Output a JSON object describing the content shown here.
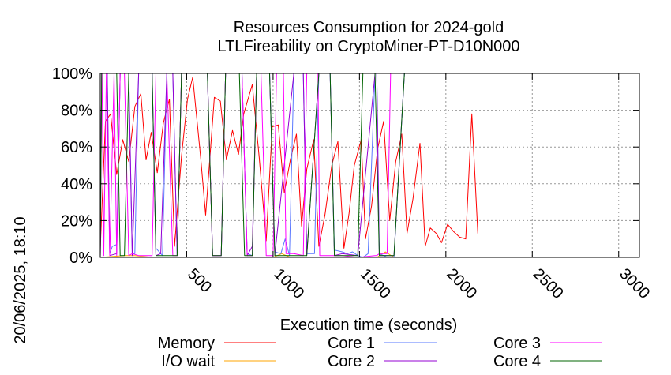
{
  "chart_data": {
    "type": "line",
    "title": "Resources Consumption for 2024-gold",
    "subtitle": "LTLFireability on CryptoMiner-PT-D10N000",
    "xlabel": "Execution time (seconds)",
    "ylabel": "",
    "side_label": "20/06/2025, 18:10",
    "xlim": [
      0,
      3120
    ],
    "ylim": [
      0,
      100
    ],
    "x_ticks": [
      500,
      1000,
      1500,
      2000,
      2500,
      3000
    ],
    "y_ticks": [
      0,
      20,
      40,
      60,
      80,
      100
    ],
    "y_tick_labels": [
      "0%",
      "20%",
      "40%",
      "60%",
      "80%",
      "100%"
    ],
    "grid": true,
    "legend_position": "bottom",
    "series": [
      {
        "name": "Memory",
        "color": "#ff0000",
        "points": [
          [
            0,
            5
          ],
          [
            30,
            74
          ],
          [
            60,
            78
          ],
          [
            95,
            45
          ],
          [
            130,
            64
          ],
          [
            165,
            52
          ],
          [
            200,
            82
          ],
          [
            235,
            89
          ],
          [
            265,
            53
          ],
          [
            295,
            68
          ],
          [
            330,
            46
          ],
          [
            365,
            73
          ],
          [
            400,
            86
          ],
          [
            430,
            6
          ],
          [
            470,
            55
          ],
          [
            505,
            86
          ],
          [
            535,
            98
          ],
          [
            580,
            55
          ],
          [
            610,
            23
          ],
          [
            660,
            87
          ],
          [
            695,
            85
          ],
          [
            730,
            53
          ],
          [
            765,
            69
          ],
          [
            800,
            56
          ],
          [
            830,
            78
          ],
          [
            880,
            94
          ],
          [
            920,
            54
          ],
          [
            960,
            9
          ],
          [
            995,
            71
          ],
          [
            1030,
            72
          ],
          [
            1065,
            35
          ],
          [
            1100,
            53
          ],
          [
            1135,
            67
          ],
          [
            1165,
            17
          ],
          [
            1195,
            48
          ],
          [
            1235,
            64
          ],
          [
            1265,
            6
          ],
          [
            1300,
            23
          ],
          [
            1340,
            50
          ],
          [
            1375,
            63
          ],
          [
            1410,
            5
          ],
          [
            1440,
            24
          ],
          [
            1470,
            50
          ],
          [
            1510,
            64
          ],
          [
            1535,
            10
          ],
          [
            1570,
            28
          ],
          [
            1605,
            59
          ],
          [
            1640,
            74
          ],
          [
            1675,
            20
          ],
          [
            1710,
            52
          ],
          [
            1745,
            67
          ],
          [
            1775,
            13
          ],
          [
            1810,
            32
          ],
          [
            1850,
            62
          ],
          [
            1880,
            6
          ],
          [
            1910,
            16
          ],
          [
            1945,
            13
          ],
          [
            1975,
            8
          ],
          [
            2010,
            18
          ],
          [
            2045,
            14
          ],
          [
            2080,
            11
          ],
          [
            2115,
            10
          ],
          [
            2150,
            78
          ],
          [
            2185,
            13
          ]
        ]
      },
      {
        "name": "I/O wait",
        "color": "#ffa500",
        "points": [
          [
            0,
            0
          ],
          [
            140,
            1
          ],
          [
            200,
            1
          ],
          [
            300,
            0
          ],
          [
            700,
            0
          ],
          [
            1000,
            0
          ],
          [
            1050,
            2
          ],
          [
            1100,
            0
          ],
          [
            1200,
            0
          ],
          [
            1500,
            0
          ],
          [
            1600,
            0
          ],
          [
            1650,
            3
          ],
          [
            1700,
            0
          ],
          [
            2185,
            0
          ]
        ]
      },
      {
        "name": "Core 1",
        "color": "#5a78ff",
        "points": [
          [
            0,
            0
          ],
          [
            8,
            100
          ],
          [
            40,
            100
          ],
          [
            55,
            2
          ],
          [
            70,
            6
          ],
          [
            95,
            7
          ],
          [
            115,
            100
          ],
          [
            165,
            100
          ],
          [
            185,
            2
          ],
          [
            200,
            2
          ],
          [
            222,
            100
          ],
          [
            300,
            100
          ],
          [
            322,
            5
          ],
          [
            360,
            1
          ],
          [
            385,
            100
          ],
          [
            420,
            100
          ],
          [
            445,
            1
          ],
          [
            470,
            100
          ],
          [
            620,
            100
          ],
          [
            650,
            1
          ],
          [
            700,
            1
          ],
          [
            725,
            100
          ],
          [
            820,
            100
          ],
          [
            850,
            2
          ],
          [
            880,
            1
          ],
          [
            905,
            100
          ],
          [
            980,
            100
          ],
          [
            1010,
            3
          ],
          [
            1045,
            2
          ],
          [
            1070,
            10
          ],
          [
            1095,
            1
          ],
          [
            1120,
            100
          ],
          [
            1175,
            100
          ],
          [
            1195,
            2
          ],
          [
            1240,
            2
          ],
          [
            1265,
            100
          ],
          [
            1330,
            100
          ],
          [
            1355,
            4
          ],
          [
            1400,
            3
          ],
          [
            1430,
            2
          ],
          [
            1460,
            3
          ],
          [
            1490,
            1
          ],
          [
            1520,
            0
          ],
          [
            1550,
            2
          ],
          [
            1590,
            100
          ],
          [
            1600,
            100
          ],
          [
            1615,
            2
          ],
          [
            1640,
            1
          ],
          [
            1660,
            0
          ],
          [
            1700,
            0
          ],
          [
            1760,
            100
          ],
          [
            2185,
            100
          ]
        ]
      },
      {
        "name": "Core 2",
        "color": "#9400d3",
        "points": [
          [
            0,
            0
          ],
          [
            8,
            100
          ],
          [
            40,
            100
          ],
          [
            55,
            1
          ],
          [
            95,
            2
          ],
          [
            115,
            100
          ],
          [
            165,
            100
          ],
          [
            185,
            1
          ],
          [
            222,
            100
          ],
          [
            300,
            100
          ],
          [
            322,
            1
          ],
          [
            350,
            2
          ],
          [
            385,
            100
          ],
          [
            420,
            100
          ],
          [
            445,
            1
          ],
          [
            470,
            100
          ],
          [
            620,
            100
          ],
          [
            650,
            1
          ],
          [
            700,
            1
          ],
          [
            725,
            100
          ],
          [
            820,
            100
          ],
          [
            850,
            1
          ],
          [
            880,
            6
          ],
          [
            905,
            100
          ],
          [
            980,
            100
          ],
          [
            1010,
            1
          ],
          [
            1120,
            100
          ],
          [
            1175,
            100
          ],
          [
            1195,
            1
          ],
          [
            1265,
            100
          ],
          [
            1330,
            100
          ],
          [
            1355,
            1
          ],
          [
            1400,
            2
          ],
          [
            1490,
            1
          ],
          [
            1590,
            100
          ],
          [
            1600,
            100
          ],
          [
            1615,
            1
          ],
          [
            1700,
            1
          ],
          [
            1760,
            100
          ],
          [
            2185,
            100
          ]
        ]
      },
      {
        "name": "Core 3",
        "color": "#ff00ff",
        "points": [
          [
            0,
            0
          ],
          [
            8,
            100
          ],
          [
            10,
            100
          ],
          [
            20,
            1
          ],
          [
            35,
            100
          ],
          [
            55,
            1
          ],
          [
            80,
            100
          ],
          [
            95,
            1
          ],
          [
            115,
            100
          ],
          [
            140,
            100
          ],
          [
            165,
            1
          ],
          [
            185,
            2
          ],
          [
            222,
            1
          ],
          [
            300,
            1
          ],
          [
            322,
            100
          ],
          [
            385,
            100
          ],
          [
            420,
            1
          ],
          [
            445,
            1
          ],
          [
            470,
            100
          ],
          [
            620,
            100
          ],
          [
            650,
            1
          ],
          [
            700,
            1
          ],
          [
            725,
            100
          ],
          [
            820,
            100
          ],
          [
            850,
            1
          ],
          [
            880,
            1
          ],
          [
            905,
            100
          ],
          [
            930,
            100
          ],
          [
            960,
            1
          ],
          [
            1000,
            1
          ],
          [
            1020,
            100
          ],
          [
            1060,
            100
          ],
          [
            1075,
            2
          ],
          [
            1120,
            2
          ],
          [
            1175,
            1
          ],
          [
            1195,
            100
          ],
          [
            1260,
            100
          ],
          [
            1270,
            1
          ],
          [
            1330,
            1
          ],
          [
            1355,
            1
          ],
          [
            1400,
            1
          ],
          [
            1490,
            0
          ],
          [
            1590,
            1
          ],
          [
            1600,
            1
          ],
          [
            1615,
            2
          ],
          [
            1660,
            2
          ],
          [
            1680,
            100
          ],
          [
            1760,
            100
          ],
          [
            2185,
            100
          ]
        ]
      },
      {
        "name": "Core 4",
        "color": "#006400",
        "points": [
          [
            0,
            0
          ],
          [
            8,
            100
          ],
          [
            95,
            100
          ],
          [
            115,
            1
          ],
          [
            140,
            1
          ],
          [
            165,
            100
          ],
          [
            300,
            100
          ],
          [
            322,
            1
          ],
          [
            385,
            1
          ],
          [
            420,
            1
          ],
          [
            445,
            1
          ],
          [
            470,
            100
          ],
          [
            620,
            100
          ],
          [
            650,
            1
          ],
          [
            700,
            1
          ],
          [
            725,
            100
          ],
          [
            805,
            100
          ],
          [
            835,
            1
          ],
          [
            880,
            1
          ],
          [
            905,
            100
          ],
          [
            980,
            100
          ],
          [
            1010,
            1
          ],
          [
            1120,
            1
          ],
          [
            1175,
            1
          ],
          [
            1195,
            1
          ],
          [
            1265,
            100
          ],
          [
            1330,
            100
          ],
          [
            1355,
            1
          ],
          [
            1490,
            1
          ],
          [
            1520,
            100
          ],
          [
            1590,
            100
          ],
          [
            1615,
            1
          ],
          [
            1700,
            1
          ],
          [
            1760,
            100
          ],
          [
            2185,
            100
          ]
        ]
      }
    ]
  }
}
